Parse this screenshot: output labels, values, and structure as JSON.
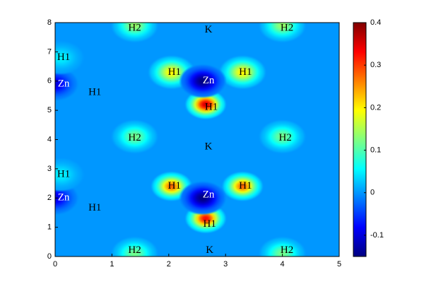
{
  "chart_data": {
    "type": "heatmap",
    "xlim": [
      0,
      5
    ],
    "xticks": [
      0,
      1,
      2,
      3,
      4,
      5
    ],
    "ylim": [
      0,
      8
    ],
    "yticks": [
      0,
      1,
      2,
      3,
      4,
      5,
      6,
      7,
      8
    ],
    "clim": [
      -0.15,
      0.4
    ],
    "cticks": [
      -0.1,
      0,
      0.1,
      0.2,
      0.3,
      0.4
    ],
    "colormap": "jet",
    "background": 0,
    "peaks": [
      {
        "x": 2.65,
        "y": 5.2,
        "value": 0.36
      },
      {
        "x": 2.65,
        "y": 1.3,
        "value": 0.33
      },
      {
        "x": 2.05,
        "y": 6.3,
        "value": 0.2
      },
      {
        "x": 3.3,
        "y": 6.3,
        "value": 0.2
      },
      {
        "x": 2.05,
        "y": 2.4,
        "value": 0.28
      },
      {
        "x": 3.3,
        "y": 2.4,
        "value": 0.28
      },
      {
        "x": 1.4,
        "y": 4.1,
        "value": 0.12
      },
      {
        "x": 4.0,
        "y": 4.1,
        "value": 0.12
      },
      {
        "x": 1.4,
        "y": 0.1,
        "value": 0.12
      },
      {
        "x": 4.0,
        "y": 0.1,
        "value": 0.12
      },
      {
        "x": 1.4,
        "y": 7.9,
        "value": 0.14
      },
      {
        "x": 4.0,
        "y": 7.9,
        "value": 0.14
      },
      {
        "x": 2.6,
        "y": 6.0,
        "value": -0.15
      },
      {
        "x": 2.6,
        "y": 2.0,
        "value": -0.15
      },
      {
        "x": 0.0,
        "y": 5.9,
        "value": -0.1
      },
      {
        "x": 0.0,
        "y": 2.0,
        "value": -0.1
      },
      {
        "x": 0.1,
        "y": 6.8,
        "value": 0.05
      },
      {
        "x": 0.1,
        "y": 2.8,
        "value": 0.05
      }
    ],
    "annotations": [
      {
        "text": "H2",
        "x": 1.4,
        "y": 7.8,
        "color": "#000000"
      },
      {
        "text": "K",
        "x": 2.7,
        "y": 7.75,
        "color": "#000000"
      },
      {
        "text": "H2",
        "x": 4.08,
        "y": 7.8,
        "color": "#000000"
      },
      {
        "text": "H1",
        "x": 0.15,
        "y": 6.8,
        "color": "#000000"
      },
      {
        "text": "H1",
        "x": 2.1,
        "y": 6.3,
        "color": "#000000"
      },
      {
        "text": "Zn",
        "x": 2.7,
        "y": 6.0,
        "color": "#ffffff"
      },
      {
        "text": "H1",
        "x": 3.35,
        "y": 6.3,
        "color": "#000000"
      },
      {
        "text": "Zn",
        "x": 0.15,
        "y": 5.9,
        "color": "#ffffff"
      },
      {
        "text": "H1",
        "x": 0.7,
        "y": 5.6,
        "color": "#000000"
      },
      {
        "text": "H1",
        "x": 2.75,
        "y": 5.1,
        "color": "#000000"
      },
      {
        "text": "H2",
        "x": 1.4,
        "y": 4.05,
        "color": "#000000"
      },
      {
        "text": "K",
        "x": 2.7,
        "y": 3.75,
        "color": "#000000"
      },
      {
        "text": "H2",
        "x": 4.05,
        "y": 4.05,
        "color": "#000000"
      },
      {
        "text": "H1",
        "x": 0.15,
        "y": 2.8,
        "color": "#000000"
      },
      {
        "text": "H1",
        "x": 2.1,
        "y": 2.4,
        "color": "#000000"
      },
      {
        "text": "Zn",
        "x": 2.7,
        "y": 2.1,
        "color": "#ffffff"
      },
      {
        "text": "H1",
        "x": 3.35,
        "y": 2.4,
        "color": "#000000"
      },
      {
        "text": "Zn",
        "x": 0.15,
        "y": 2.0,
        "color": "#ffffff"
      },
      {
        "text": "H1",
        "x": 0.7,
        "y": 1.65,
        "color": "#000000"
      },
      {
        "text": "H1",
        "x": 2.72,
        "y": 1.1,
        "color": "#000000"
      },
      {
        "text": "H2",
        "x": 1.4,
        "y": 0.2,
        "color": "#000000"
      },
      {
        "text": "K",
        "x": 2.72,
        "y": 0.2,
        "color": "#000000"
      },
      {
        "text": "H2",
        "x": 4.08,
        "y": 0.2,
        "color": "#000000"
      }
    ]
  }
}
